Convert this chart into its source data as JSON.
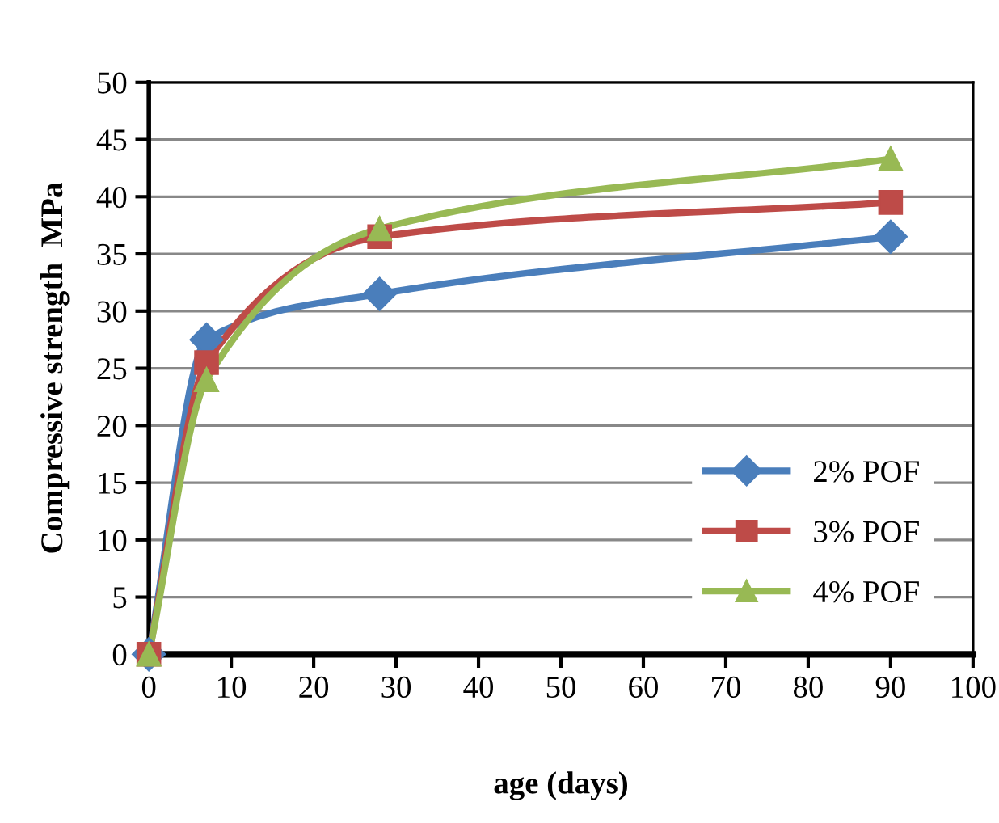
{
  "chart_data": {
    "type": "line",
    "xlabel": "age (days)",
    "ylabel": "Compressive strength  MPa",
    "x": [
      0,
      7,
      28,
      90
    ],
    "series": [
      {
        "name": "2% POF",
        "color": "#4a7ebb",
        "values": [
          0,
          27.5,
          31.5,
          36.5
        ],
        "marker": "diamond"
      },
      {
        "name": "3% POF",
        "color": "#be4b48",
        "values": [
          0,
          25.5,
          36.5,
          39.5
        ],
        "marker": "square"
      },
      {
        "name": "4% POF",
        "color": "#98b954",
        "values": [
          0,
          24,
          37.2,
          43.3
        ],
        "marker": "triangle"
      }
    ],
    "xlim": [
      0,
      100
    ],
    "xticks": [
      0,
      10,
      20,
      30,
      40,
      50,
      60,
      70,
      80,
      90,
      100
    ],
    "ylim": [
      0,
      50
    ],
    "yticks": [
      0,
      5,
      10,
      15,
      20,
      25,
      30,
      35,
      40,
      45,
      50
    ],
    "grid": "y",
    "legend": "bottom right",
    "line_style": "solid"
  }
}
